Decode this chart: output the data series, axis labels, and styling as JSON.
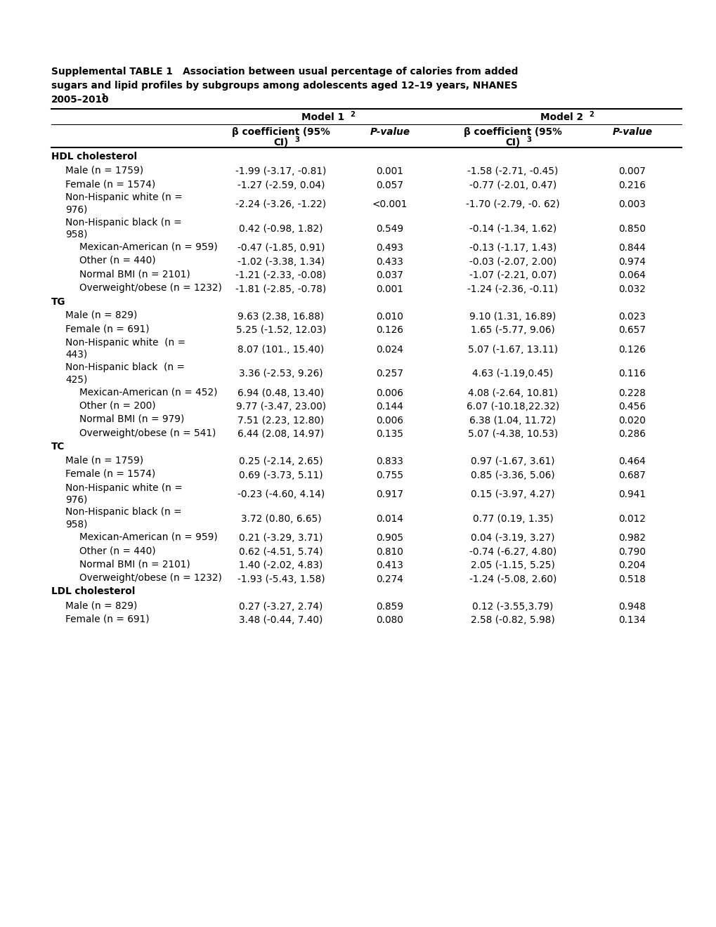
{
  "title_lines": [
    "Supplemental TABLE 1   Association between usual percentage of calories from added",
    "sugars and lipid profiles by subgroups among adolescents aged 12–19 years, NHANES",
    "2005–2010"
  ],
  "rows": [
    {
      "label": "HDL cholesterol",
      "bold": true,
      "indent": 0,
      "m1_coef": "",
      "m1_p": "",
      "m2_coef": "",
      "m2_p": "",
      "wrap": false
    },
    {
      "label": "Male (n = 1759)",
      "bold": false,
      "indent": 1,
      "m1_coef": "-1.99 (-3.17, -0.81)",
      "m1_p": "0.001",
      "m2_coef": "-1.58 (-2.71, -0.45)",
      "m2_p": "0.007",
      "wrap": false
    },
    {
      "label": "Female (n = 1574)",
      "bold": false,
      "indent": 1,
      "m1_coef": "-1.27 (-2.59, 0.04)",
      "m1_p": "0.057",
      "m2_coef": "-0.77 (-2.01, 0.47)",
      "m2_p": "0.216",
      "wrap": false
    },
    {
      "label": "Non-Hispanic white (n =",
      "label2": "976)",
      "bold": false,
      "indent": 1,
      "m1_coef": "-2.24 (-3.26, -1.22)",
      "m1_p": "<0.001",
      "m2_coef": "-1.70 (-2.79, -0. 62)",
      "m2_p": "0.003",
      "wrap": true
    },
    {
      "label": "Non-Hispanic black (n =",
      "label2": "958)",
      "bold": false,
      "indent": 1,
      "m1_coef": "0.42 (-0.98, 1.82)",
      "m1_p": "0.549",
      "m2_coef": "-0.14 (-1.34, 1.62)",
      "m2_p": "0.850",
      "wrap": true
    },
    {
      "label": "Mexican-American (n = 959)",
      "bold": false,
      "indent": 2,
      "m1_coef": "-0.47 (-1.85, 0.91)",
      "m1_p": "0.493",
      "m2_coef": "-0.13 (-1.17, 1.43)",
      "m2_p": "0.844",
      "wrap": false
    },
    {
      "label": "Other (n = 440)",
      "bold": false,
      "indent": 2,
      "m1_coef": "-1.02 (-3.38, 1.34)",
      "m1_p": "0.433",
      "m2_coef": "-0.03 (-2.07, 2.00)",
      "m2_p": "0.974",
      "wrap": false
    },
    {
      "label": "Normal BMI (n = 2101)",
      "bold": false,
      "indent": 2,
      "m1_coef": "-1.21 (-2.33, -0.08)",
      "m1_p": "0.037",
      "m2_coef": "-1.07 (-2.21, 0.07)",
      "m2_p": "0.064",
      "wrap": false
    },
    {
      "label": "Overweight/obese (n = 1232)",
      "bold": false,
      "indent": 2,
      "m1_coef": "-1.81 (-2.85, -0.78)",
      "m1_p": "0.001",
      "m2_coef": "-1.24 (-2.36, -0.11)",
      "m2_p": "0.032",
      "wrap": false
    },
    {
      "label": "TG",
      "bold": true,
      "indent": 0,
      "m1_coef": "",
      "m1_p": "",
      "m2_coef": "",
      "m2_p": "",
      "wrap": false
    },
    {
      "label": "Male (n = 829)",
      "bold": false,
      "indent": 1,
      "m1_coef": "9.63 (2.38, 16.88)",
      "m1_p": "0.010",
      "m2_coef": "9.10 (1.31, 16.89)",
      "m2_p": "0.023",
      "wrap": false
    },
    {
      "label": "Female (n = 691)",
      "bold": false,
      "indent": 1,
      "m1_coef": "5.25 (-1.52, 12.03)",
      "m1_p": "0.126",
      "m2_coef": "1.65 (-5.77, 9.06)",
      "m2_p": "0.657",
      "wrap": false
    },
    {
      "label": "Non-Hispanic white  (n =",
      "label2": "443)",
      "bold": false,
      "indent": 1,
      "m1_coef": "8.07 (101., 15.40)",
      "m1_p": "0.024",
      "m2_coef": "5.07 (-1.67, 13.11)",
      "m2_p": "0.126",
      "wrap": true
    },
    {
      "label": "Non-Hispanic black  (n =",
      "label2": "425)",
      "bold": false,
      "indent": 1,
      "m1_coef": "3.36 (-2.53, 9.26)",
      "m1_p": "0.257",
      "m2_coef": "4.63 (-1.19,0.45)",
      "m2_p": "0.116",
      "wrap": true
    },
    {
      "label": "Mexican-American (n = 452)",
      "bold": false,
      "indent": 2,
      "m1_coef": "6.94 (0.48, 13.40)",
      "m1_p": "0.006",
      "m2_coef": "4.08 (-2.64, 10.81)",
      "m2_p": "0.228",
      "wrap": false
    },
    {
      "label": "Other (n = 200)",
      "bold": false,
      "indent": 2,
      "m1_coef": "9.77 (-3.47, 23.00)",
      "m1_p": "0.144",
      "m2_coef": "6.07 (-10.18,22.32)",
      "m2_p": "0.456",
      "wrap": false
    },
    {
      "label": "Normal BMI (n = 979)",
      "bold": false,
      "indent": 2,
      "m1_coef": "7.51 (2.23, 12.80)",
      "m1_p": "0.006",
      "m2_coef": "6.38 (1.04, 11.72)",
      "m2_p": "0.020",
      "wrap": false
    },
    {
      "label": "Overweight/obese (n = 541)",
      "bold": false,
      "indent": 2,
      "m1_coef": "6.44 (2.08, 14.97)",
      "m1_p": "0.135",
      "m2_coef": "5.07 (-4.38, 10.53)",
      "m2_p": "0.286",
      "wrap": false
    },
    {
      "label": "TC",
      "bold": true,
      "indent": 0,
      "m1_coef": "",
      "m1_p": "",
      "m2_coef": "",
      "m2_p": "",
      "wrap": false
    },
    {
      "label": "Male (n = 1759)",
      "bold": false,
      "indent": 1,
      "m1_coef": "0.25 (-2.14, 2.65)",
      "m1_p": "0.833",
      "m2_coef": "0.97 (-1.67, 3.61)",
      "m2_p": "0.464",
      "wrap": false
    },
    {
      "label": "Female (n = 1574)",
      "bold": false,
      "indent": 1,
      "m1_coef": "0.69 (-3.73, 5.11)",
      "m1_p": "0.755",
      "m2_coef": "0.85 (-3.36, 5.06)",
      "m2_p": "0.687",
      "wrap": false
    },
    {
      "label": "Non-Hispanic white (n =",
      "label2": "976)",
      "bold": false,
      "indent": 1,
      "m1_coef": "-0.23 (-4.60, 4.14)",
      "m1_p": "0.917",
      "m2_coef": "0.15 (-3.97, 4.27)",
      "m2_p": "0.941",
      "wrap": true
    },
    {
      "label": "Non-Hispanic black (n =",
      "label2": "958)",
      "bold": false,
      "indent": 1,
      "m1_coef": "3.72 (0.80, 6.65)",
      "m1_p": "0.014",
      "m2_coef": "0.77 (0.19, 1.35)",
      "m2_p": "0.012",
      "wrap": true
    },
    {
      "label": "Mexican-American (n = 959)",
      "bold": false,
      "indent": 2,
      "m1_coef": "0.21 (-3.29, 3.71)",
      "m1_p": "0.905",
      "m2_coef": "0.04 (-3.19, 3.27)",
      "m2_p": "0.982",
      "wrap": false
    },
    {
      "label": "Other (n = 440)",
      "bold": false,
      "indent": 2,
      "m1_coef": "0.62 (-4.51, 5.74)",
      "m1_p": "0.810",
      "m2_coef": "-0.74 (-6.27, 4.80)",
      "m2_p": "0.790",
      "wrap": false
    },
    {
      "label": "Normal BMI (n = 2101)",
      "bold": false,
      "indent": 2,
      "m1_coef": "1.40 (-2.02, 4.83)",
      "m1_p": "0.413",
      "m2_coef": "2.05 (-1.15, 5.25)",
      "m2_p": "0.204",
      "wrap": false
    },
    {
      "label": "Overweight/obese (n = 1232)",
      "bold": false,
      "indent": 2,
      "m1_coef": "-1.93 (-5.43, 1.58)",
      "m1_p": "0.274",
      "m2_coef": "-1.24 (-5.08, 2.60)",
      "m2_p": "0.518",
      "wrap": false
    },
    {
      "label": "LDL cholesterol",
      "bold": true,
      "indent": 0,
      "m1_coef": "",
      "m1_p": "",
      "m2_coef": "",
      "m2_p": "",
      "wrap": false
    },
    {
      "label": "Male (n = 829)",
      "bold": false,
      "indent": 1,
      "m1_coef": "0.27 (-3.27, 2.74)",
      "m1_p": "0.859",
      "m2_coef": "0.12 (-3.55,3.79)",
      "m2_p": "0.948",
      "wrap": false
    },
    {
      "label": "Female (n = 691)",
      "bold": false,
      "indent": 1,
      "m1_coef": "3.48 (-0.44, 7.40)",
      "m1_p": "0.080",
      "m2_coef": "2.58 (-0.82, 5.98)",
      "m2_p": "0.134",
      "wrap": false
    }
  ],
  "bg_color": "#ffffff",
  "text_color": "#000000",
  "font_size": 9.8
}
